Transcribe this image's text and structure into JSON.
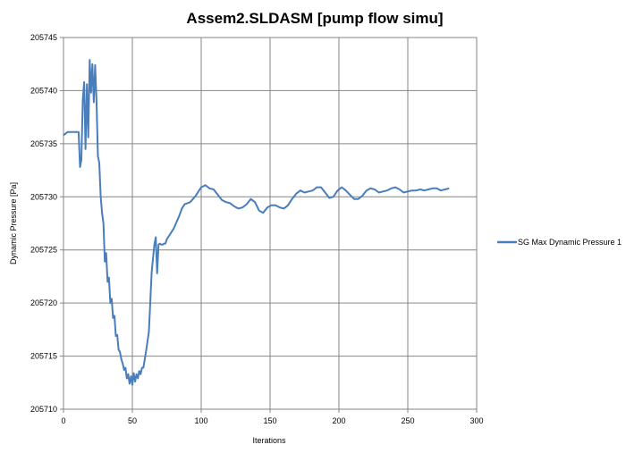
{
  "chart_data": {
    "type": "line",
    "title": "Assem2.SLDASM [pump flow simu]",
    "xlabel": "Iterations",
    "ylabel": "Dynamic Pressure  [Pa]",
    "xlim": [
      0,
      300
    ],
    "ylim": [
      205710,
      205745
    ],
    "xticks": [
      0,
      50,
      100,
      150,
      200,
      250,
      300
    ],
    "yticks": [
      205710,
      205715,
      205720,
      205725,
      205730,
      205735,
      205740,
      205745
    ],
    "grid": true,
    "legend_position": "right",
    "series": [
      {
        "name": "SG Max Dynamic  Pressure 1",
        "color": "#4a7ebb",
        "x": [
          0,
          3,
          6,
          9,
          11,
          12,
          13,
          14,
          15,
          16,
          17,
          18,
          19,
          20,
          21,
          22,
          23,
          24,
          25,
          26,
          27,
          28,
          29,
          30,
          31,
          32,
          33,
          34,
          35,
          36,
          37,
          38,
          39,
          40,
          41,
          42,
          43,
          44,
          45,
          46,
          47,
          48,
          49,
          50,
          51,
          52,
          53,
          54,
          55,
          56,
          57,
          58,
          59,
          60,
          62,
          64,
          66,
          67,
          68,
          69,
          70,
          71,
          72,
          73,
          74,
          75,
          76,
          77,
          78,
          80,
          82,
          84,
          86,
          88,
          90,
          92,
          94,
          96,
          98,
          100,
          103,
          106,
          109,
          112,
          115,
          118,
          121,
          124,
          127,
          130,
          133,
          136,
          139,
          142,
          145,
          148,
          151,
          154,
          157,
          160,
          163,
          166,
          169,
          172,
          175,
          178,
          181,
          184,
          187,
          190,
          193,
          196,
          199,
          202,
          205,
          208,
          211,
          214,
          217,
          220,
          223,
          226,
          229,
          232,
          235,
          238,
          241,
          244,
          247,
          250,
          253,
          256,
          259,
          262,
          265,
          268,
          271,
          274,
          277,
          280
        ],
        "y": [
          205735.8,
          205736.1,
          205736.1,
          205736.1,
          205736.1,
          205732.8,
          205733.5,
          205739.2,
          205740.8,
          205734.5,
          205740.6,
          205735.6,
          205742.9,
          205739.8,
          205742.5,
          205738.9,
          205742.4,
          205738.8,
          205733.8,
          205733.2,
          205730.0,
          205728.5,
          205727.5,
          205723.9,
          205724.7,
          205722.0,
          205722.4,
          205720.0,
          205720.4,
          205718.6,
          205718.8,
          205716.9,
          205717.0,
          205715.6,
          205715.4,
          205714.7,
          205714.3,
          205713.7,
          205713.9,
          205712.9,
          205713.3,
          205712.4,
          205713.1,
          205712.3,
          205713.4,
          205712.6,
          205713.3,
          205712.9,
          205713.6,
          205713.3,
          205713.9,
          205713.9,
          205714.7,
          205715.5,
          205717.3,
          205722.9,
          205725.5,
          205726.2,
          205722.8,
          205725.5,
          205725.6,
          205725.5,
          205725.5,
          205725.6,
          205725.6,
          205726.0,
          205726.2,
          205726.4,
          205726.6,
          205727.0,
          205727.6,
          205728.2,
          205728.9,
          205729.3,
          205729.4,
          205729.5,
          205729.8,
          205730.1,
          205730.5,
          205730.9,
          205731.1,
          205730.8,
          205730.7,
          205730.2,
          205729.7,
          205729.5,
          205729.4,
          205729.1,
          205728.9,
          205729.0,
          205729.3,
          205729.8,
          205729.5,
          205728.7,
          205728.5,
          205729.0,
          205729.2,
          205729.2,
          205729.0,
          205728.9,
          205729.2,
          205729.8,
          205730.3,
          205730.6,
          205730.4,
          205730.5,
          205730.6,
          205730.9,
          205730.9,
          205730.4,
          205729.9,
          205730.0,
          205730.6,
          205730.9,
          205730.6,
          205730.2,
          205729.8,
          205729.8,
          205730.1,
          205730.6,
          205730.8,
          205730.7,
          205730.4,
          205730.5,
          205730.6,
          205730.8,
          205730.9,
          205730.7,
          205730.4,
          205730.5,
          205730.6,
          205730.6,
          205730.7,
          205730.6,
          205730.7,
          205730.8,
          205730.8,
          205730.6,
          205730.7,
          205730.8
        ]
      }
    ]
  }
}
